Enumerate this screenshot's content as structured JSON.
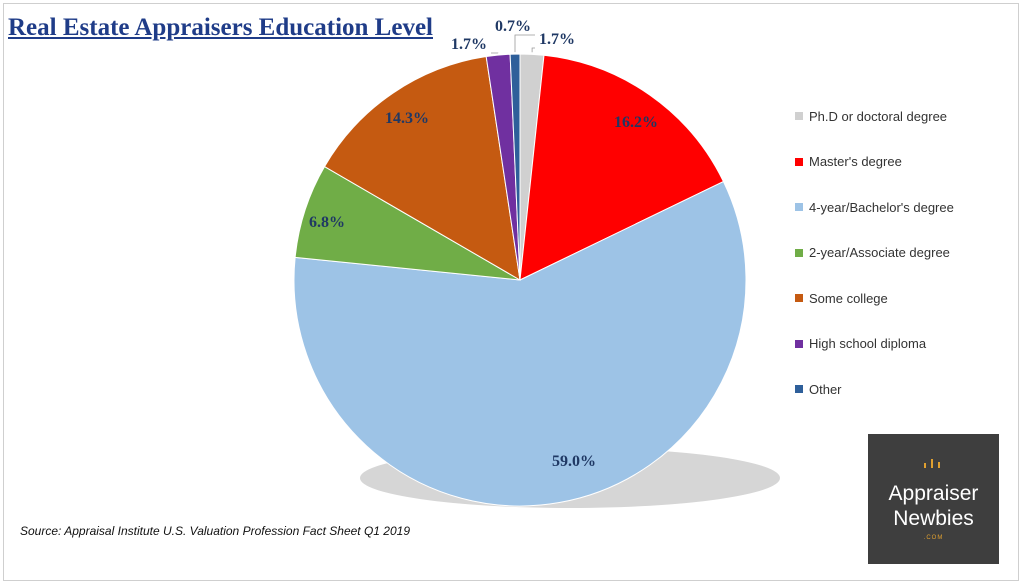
{
  "chart_data": {
    "type": "pie",
    "title": "Real Estate Appraisers Education Level",
    "slices": [
      {
        "label": "Ph.D or doctoral degree",
        "value": 1.7,
        "display": "1.7%",
        "color": "#d0d0d0"
      },
      {
        "label": "Master's degree",
        "value": 16.2,
        "display": "16.2%",
        "color": "#ff0000"
      },
      {
        "label": "4-year/Bachelor's degree",
        "value": 59.0,
        "display": "59.0%",
        "color": "#9dc3e6"
      },
      {
        "label": "2-year/Associate degree",
        "value": 6.8,
        "display": "6.8%",
        "color": "#70ad47"
      },
      {
        "label": "Some college",
        "value": 14.3,
        "display": "14.3%",
        "color": "#c55a11"
      },
      {
        "label": "High school diploma",
        "value": 1.7,
        "display": "1.7%",
        "color": "#7030a0"
      },
      {
        "label": "Other",
        "value": 0.7,
        "display": "0.7%",
        "color": "#2e5f9a"
      }
    ],
    "legend_position": "right"
  },
  "source": "Source: Appraisal Institute U.S. Valuation Profession Fact Sheet Q1 2019",
  "logo": {
    "line1": "Appraiser",
    "line2": "Newbies",
    "suffix": ".COM"
  }
}
